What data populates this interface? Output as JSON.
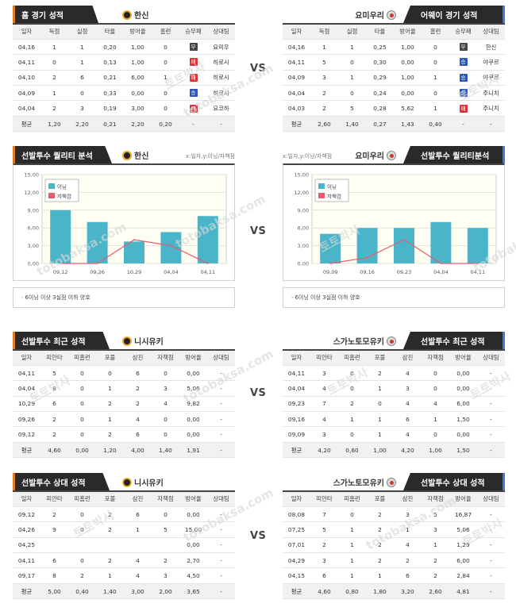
{
  "vs_label": "VS",
  "watermark": [
    "토토박사",
    "totobaksa.com"
  ],
  "colors": {
    "innings_bar": "#4ab5c9",
    "er_line": "#e85a6a",
    "plot_bg": "#fffff4"
  },
  "home_record": {
    "title": "홈 경기 성적",
    "team": "한신",
    "team_logo": "tigers-logo",
    "columns": [
      "일자",
      "득점",
      "실점",
      "타율",
      "방어율",
      "홈런",
      "승무패",
      "상대팀"
    ],
    "rows": [
      [
        "04,16",
        "1",
        "1",
        "0,20",
        "1,00",
        "0",
        {
          "t": "무",
          "c": "draw"
        },
        "요미우"
      ],
      [
        "04,11",
        "0",
        "1",
        "0,13",
        "1,00",
        "0",
        {
          "t": "패",
          "c": "lose"
        },
        "히로시"
      ],
      [
        "04,10",
        "2",
        "6",
        "0,21",
        "6,00",
        "1",
        {
          "t": "패",
          "c": "lose"
        },
        "히로시"
      ],
      [
        "04,09",
        "1",
        "0",
        "0,33",
        "0,00",
        "0",
        {
          "t": "승",
          "c": "win"
        },
        "히로시"
      ],
      [
        "04,04",
        "2",
        "3",
        "0,19",
        "3,00",
        "0",
        {
          "t": "패",
          "c": "lose"
        },
        "요코하"
      ]
    ],
    "avg": [
      "평균",
      "1,20",
      "2,20",
      "0,21",
      "2,20",
      "0,20",
      "-",
      "-"
    ]
  },
  "away_record": {
    "title": "어웨이 경기 성적",
    "team": "요미우리",
    "team_logo": "giants-logo",
    "columns": [
      "일자",
      "득점",
      "실점",
      "타율",
      "방어율",
      "홈런",
      "승무패",
      "상대팀"
    ],
    "rows": [
      [
        "04,16",
        "1",
        "1",
        "0,25",
        "1,00",
        "0",
        {
          "t": "무",
          "c": "draw"
        },
        "한신"
      ],
      [
        "04,11",
        "5",
        "0",
        "0,30",
        "0,00",
        "0",
        {
          "t": "승",
          "c": "win"
        },
        "야쿠르"
      ],
      [
        "04,09",
        "3",
        "1",
        "0,29",
        "1,00",
        "1",
        {
          "t": "승",
          "c": "win"
        },
        "야쿠르"
      ],
      [
        "04,04",
        "2",
        "0",
        "0,24",
        "0,00",
        "0",
        {
          "t": "승",
          "c": "win"
        },
        "주니치"
      ],
      [
        "04,03",
        "2",
        "5",
        "0,28",
        "5,62",
        "1",
        {
          "t": "패",
          "c": "lose"
        },
        "주니치"
      ]
    ],
    "avg": [
      "평균",
      "2,60",
      "1,40",
      "0,27",
      "1,43",
      "0,40",
      "-",
      "-"
    ]
  },
  "quality_home": {
    "title": "선발투수 퀄리티 분석",
    "team": "한신",
    "hint": "x:일자,y:이닝/자책점",
    "note": "6이닝 이상 3실점 이하 양호"
  },
  "quality_away": {
    "title": "선발투수 퀄리티분석",
    "team": "요미우리",
    "hint": "x:일자,y:이닝/자책점",
    "note": "6이닝 이상 3실점 이하 양호"
  },
  "chart_data": [
    {
      "type": "bar",
      "categories": [
        "09,12",
        "09,26",
        "10,29",
        "04,04",
        "04,11"
      ],
      "series": [
        {
          "name": "이닝",
          "type": "bar",
          "values": [
            9,
            7,
            3.7,
            5.3,
            8
          ]
        },
        {
          "name": "자책점",
          "type": "line",
          "values": [
            0,
            0,
            4,
            3,
            0
          ]
        }
      ],
      "ylim": [
        0,
        15
      ],
      "yticks": [
        "0,00",
        "3,00",
        "6,00",
        "9,00",
        "12,00",
        "15,00"
      ],
      "legend": "top-left",
      "grid": true
    },
    {
      "type": "bar",
      "categories": [
        "09,09",
        "09,16",
        "09,23",
        "04,04",
        "04,11"
      ],
      "series": [
        {
          "name": "이닝",
          "type": "bar",
          "values": [
            5,
            6,
            6,
            7,
            6
          ]
        },
        {
          "name": "자책점",
          "type": "line",
          "values": [
            0,
            1,
            4,
            0,
            0
          ]
        }
      ],
      "ylim": [
        0,
        15
      ],
      "yticks": [
        "0,00",
        "3,00",
        "6,00",
        "9,00",
        "12,00",
        "15,00"
      ],
      "legend": "top-left",
      "grid": true
    }
  ],
  "recent_home": {
    "title": "선발투수 최근 성적",
    "pitcher": "니시유키",
    "columns": [
      "일자",
      "피안타",
      "피홈런",
      "포볼",
      "삼진",
      "자책점",
      "방어율",
      "상대팀"
    ],
    "rows": [
      [
        "04,11",
        "5",
        "0",
        "0",
        "6",
        "0",
        "0,00",
        "-"
      ],
      [
        "04,04",
        "8",
        "0",
        "1",
        "2",
        "3",
        "5,06",
        "-"
      ],
      [
        "10,29",
        "6",
        "0",
        "2",
        "2",
        "4",
        "9,82",
        "-"
      ],
      [
        "09,26",
        "2",
        "0",
        "1",
        "4",
        "0",
        "0,00",
        "-"
      ],
      [
        "09,12",
        "2",
        "0",
        "2",
        "6",
        "0",
        "0,00",
        "-"
      ]
    ],
    "avg": [
      "평균",
      "4,60",
      "0,00",
      "1,20",
      "4,00",
      "1,40",
      "1,91",
      "-"
    ]
  },
  "recent_away": {
    "title": "선발투수 최근 성적",
    "pitcher": "스가노토모유키",
    "columns": [
      "일자",
      "피안타",
      "피홈런",
      "포볼",
      "삼진",
      "자책점",
      "방어율",
      "상대팀"
    ],
    "rows": [
      [
        "04,11",
        "3",
        "0",
        "2",
        "4",
        "0",
        "0,00",
        "-"
      ],
      [
        "04,04",
        "4",
        "0",
        "1",
        "3",
        "0",
        "0,00",
        "-"
      ],
      [
        "09,23",
        "7",
        "2",
        "0",
        "4",
        "4",
        "6,00",
        "-"
      ],
      [
        "09,16",
        "4",
        "1",
        "1",
        "6",
        "1",
        "1,50",
        "-"
      ],
      [
        "09,09",
        "3",
        "0",
        "1",
        "4",
        "0",
        "0,00",
        "-"
      ]
    ],
    "avg": [
      "평균",
      "4,20",
      "0,60",
      "1,00",
      "4,20",
      "1,00",
      "1,50",
      "-"
    ]
  },
  "vs_home": {
    "title": "선발투수 상대 성적",
    "pitcher": "니시유키",
    "columns": [
      "일자",
      "피안타",
      "피홈런",
      "포볼",
      "삼진",
      "자책점",
      "방어율",
      "상대팀"
    ],
    "rows": [
      [
        "09,12",
        "2",
        "0",
        "2",
        "6",
        "0",
        "0,00",
        "-"
      ],
      [
        "04,26",
        "9",
        "0",
        "2",
        "1",
        "5",
        "15,00",
        "-"
      ],
      [
        "04,25",
        "",
        "",
        "",
        "",
        "",
        "0,00",
        "-"
      ],
      [
        "04,11",
        "6",
        "0",
        "2",
        "4",
        "2",
        "2,70",
        "-"
      ],
      [
        "09,17",
        "8",
        "2",
        "1",
        "4",
        "3",
        "4,50",
        "-"
      ]
    ],
    "avg": [
      "평균",
      "5,00",
      "0,40",
      "1,40",
      "3,00",
      "2,00",
      "3,65",
      "-"
    ]
  },
  "vs_away": {
    "title": "선발투수 상대 성적",
    "pitcher": "스가노토모유키",
    "columns": [
      "일자",
      "피안타",
      "피홈런",
      "포볼",
      "삼진",
      "자책점",
      "방어율",
      "상대팀"
    ],
    "rows": [
      [
        "08,08",
        "7",
        "0",
        "2",
        "3",
        "5",
        "16,87",
        "-"
      ],
      [
        "07,25",
        "5",
        "1",
        "2",
        "1",
        "3",
        "5,06",
        "-"
      ],
      [
        "07,01",
        "2",
        "1",
        "2",
        "4",
        "1",
        "1,29",
        "-"
      ],
      [
        "04,29",
        "3",
        "1",
        "2",
        "2",
        "2",
        "6,00",
        "-"
      ],
      [
        "04,15",
        "6",
        "1",
        "1",
        "6",
        "2",
        "2,84",
        "-"
      ]
    ],
    "avg": [
      "평균",
      "4,60",
      "0,80",
      "1,80",
      "3,20",
      "2,60",
      "4,81",
      "-"
    ]
  }
}
